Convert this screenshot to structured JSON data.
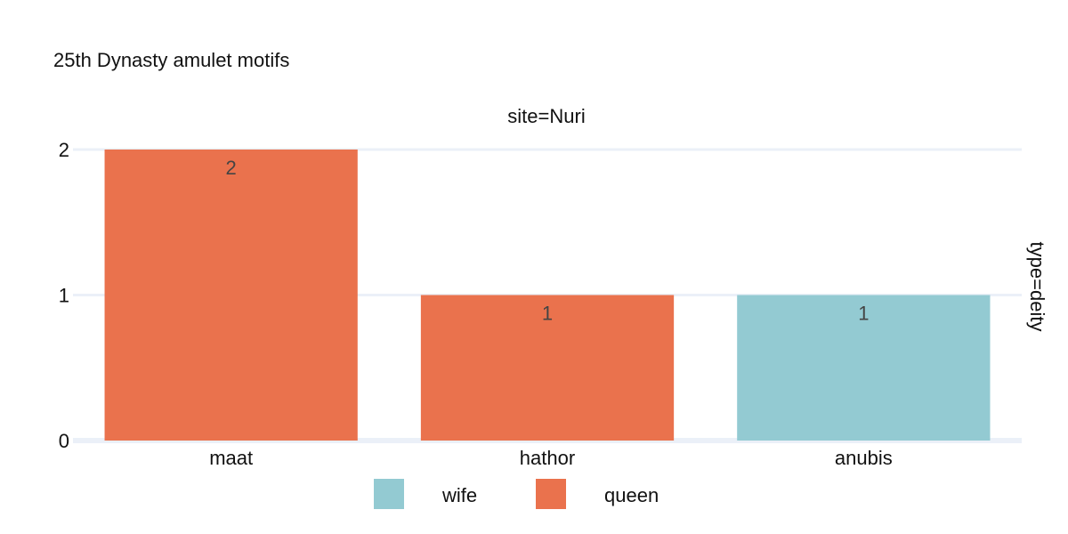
{
  "chart_data": {
    "type": "bar",
    "title": "25th Dynasty amulet motifs",
    "facet_col_label": "site=Nuri",
    "facet_row_label": "type=deity",
    "categories": [
      "maat",
      "hathor",
      "anubis"
    ],
    "bars": [
      {
        "category": "maat",
        "value": 2,
        "series": "queen",
        "label": "2"
      },
      {
        "category": "hathor",
        "value": 1,
        "series": "queen",
        "label": "1"
      },
      {
        "category": "anubis",
        "value": 1,
        "series": "wife",
        "label": "1"
      }
    ],
    "series": [
      {
        "name": "wife",
        "color": "#93CAD2"
      },
      {
        "name": "queen",
        "color": "#EA724D"
      }
    ],
    "ylim": [
      0,
      2
    ],
    "yticks": [
      "0",
      "1",
      "2"
    ],
    "grid": true,
    "legend_position": "bottom-center"
  }
}
